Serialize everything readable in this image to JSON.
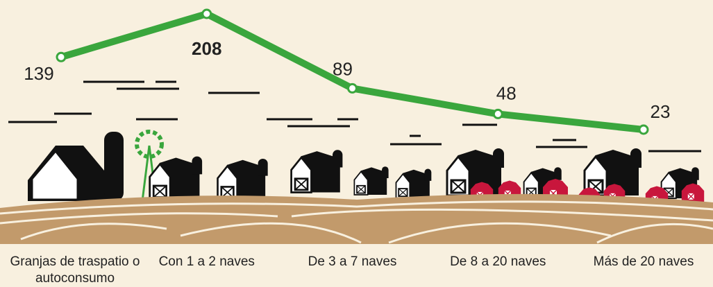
{
  "chart_data": {
    "type": "line",
    "categories": [
      "Granjas de traspatio o autoconsumo",
      "Con 1 a 2 naves",
      "De 3 a 7 naves",
      "De 8 a 20 naves",
      "Más de 20 naves"
    ],
    "values": [
      139,
      208,
      89,
      48,
      23
    ],
    "color": "#3aa63d"
  }
}
